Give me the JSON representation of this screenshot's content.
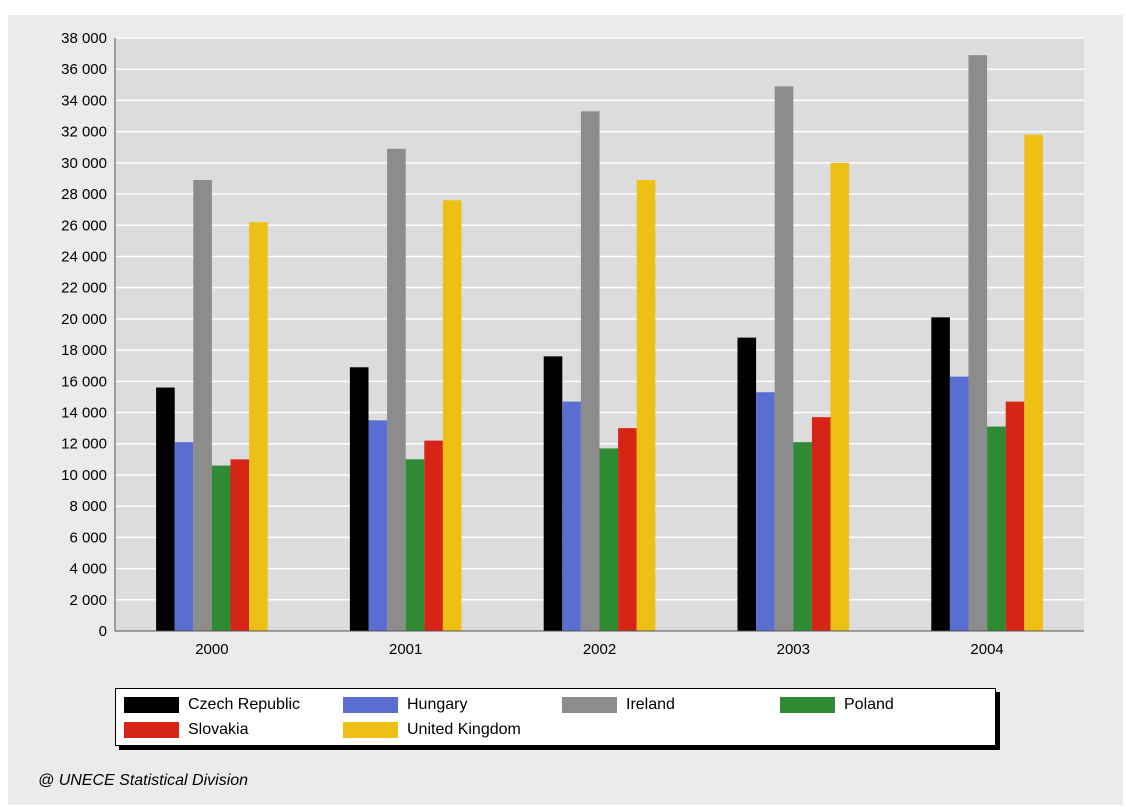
{
  "chart_data": {
    "type": "bar",
    "categories": [
      "2000",
      "2001",
      "2002",
      "2003",
      "2004"
    ],
    "series": [
      {
        "name": "Czech Republic",
        "color": "#000000",
        "values": [
          15600,
          16900,
          17600,
          18800,
          20100
        ]
      },
      {
        "name": "Hungary",
        "color": "#5a6ed2",
        "values": [
          12100,
          13500,
          14700,
          15300,
          16300
        ]
      },
      {
        "name": "Ireland",
        "color": "#8c8c8c",
        "values": [
          28900,
          30900,
          33300,
          34900,
          36900
        ]
      },
      {
        "name": "Poland",
        "color": "#2e8b33",
        "values": [
          10600,
          11000,
          11700,
          12100,
          13100
        ]
      },
      {
        "name": "Slovakia",
        "color": "#d62515",
        "values": [
          11000,
          12200,
          13000,
          13700,
          14700
        ]
      },
      {
        "name": "United Kingdom",
        "color": "#eec014",
        "values": [
          26200,
          27600,
          28900,
          30000,
          31800
        ]
      }
    ],
    "yticks": [
      "0",
      "2 000",
      "4 000",
      "6 000",
      "8 000",
      "10 000",
      "12 000",
      "14 000",
      "16 000",
      "18 000",
      "20 000",
      "22 000",
      "24 000",
      "26 000",
      "28 000",
      "30 000",
      "32 000",
      "34 000",
      "36 000",
      "38 000"
    ],
    "ylim": [
      0,
      38000
    ],
    "grid": true,
    "legend_position": "bottom",
    "title": "",
    "xlabel": "",
    "ylabel": ""
  },
  "footer": {
    "source": "@ UNECE Statistical Division"
  }
}
